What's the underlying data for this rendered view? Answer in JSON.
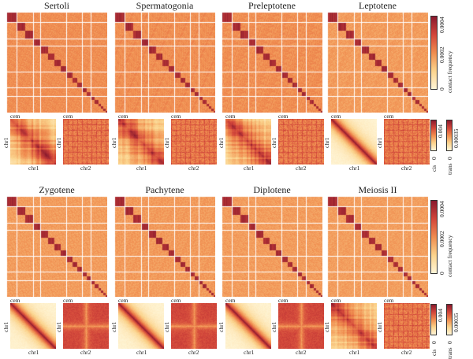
{
  "chart_data": {
    "type": "heatmap",
    "panels": [
      {
        "title": "Sertoli",
        "cis_pattern": "checkered"
      },
      {
        "title": "Spermatogonia",
        "cis_pattern": "checkered"
      },
      {
        "title": "Preleptotene",
        "cis_pattern": "checkered"
      },
      {
        "title": "Leptotene",
        "cis_pattern": "diagonal"
      },
      {
        "title": "Zygotene",
        "cis_pattern": "diagonal"
      },
      {
        "title": "Pachytene",
        "cis_pattern": "diagonal"
      },
      {
        "title": "Diplotene",
        "cis_pattern": "diagonal"
      },
      {
        "title": "Meiosis II",
        "cis_pattern": "checkered"
      }
    ],
    "small_labels": {
      "cem": "cem",
      "cis_x": "chr1",
      "cis_y": "chr1",
      "trans_x": "chr2",
      "trans_y": "chr1"
    },
    "colorbar_genome": {
      "label": "contact frequency",
      "ticks": [
        "0",
        "0.0002",
        "0.0004"
      ],
      "range": [
        0,
        0.0004
      ]
    },
    "colorbar_cis": {
      "label": "cis",
      "ticks": [
        "0",
        "0.004"
      ],
      "range": [
        0,
        0.004
      ]
    },
    "colorbar_trans": {
      "label": "trans",
      "ticks": [
        "0",
        "0.00035"
      ],
      "range": [
        0,
        0.00035
      ]
    },
    "colormap": [
      "#fff6d8",
      "#fbd38c",
      "#f08c4f",
      "#d2453a",
      "#8a1a2e"
    ]
  }
}
